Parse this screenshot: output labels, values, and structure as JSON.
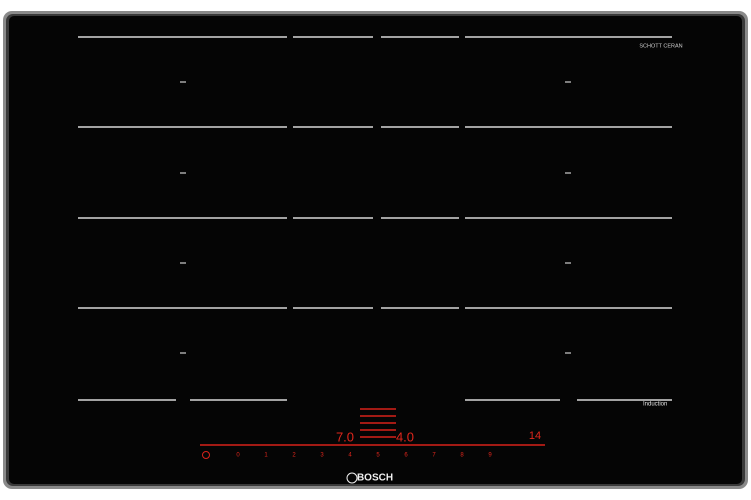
{
  "brand": "BOSCH",
  "glass": "SCHOTT CERAN",
  "zone_label": "Induction",
  "displays": {
    "left": "7.0",
    "right": "4.0",
    "timer": "14"
  },
  "power_levels": [
    0,
    1,
    2,
    3,
    4,
    5,
    6,
    7,
    8,
    9
  ]
}
